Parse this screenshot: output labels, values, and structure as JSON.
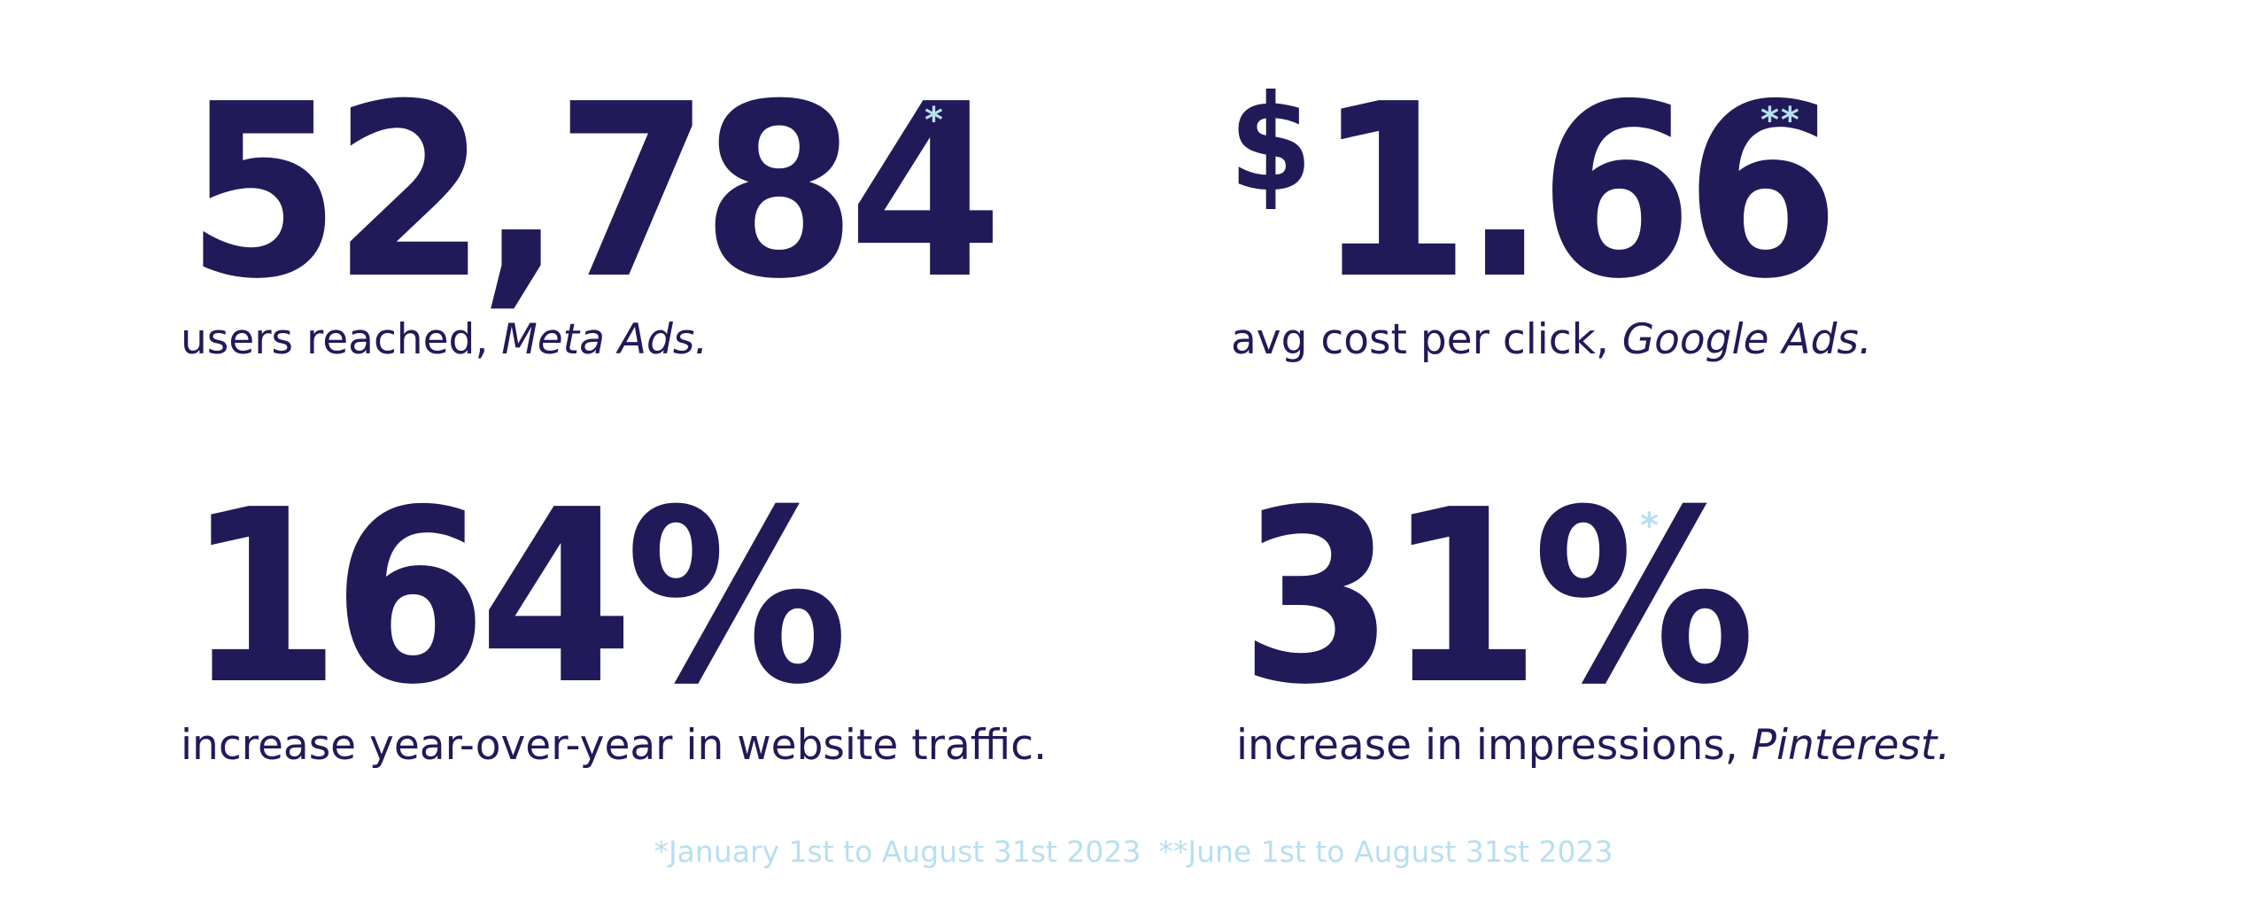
{
  "stats": [
    {
      "value": "52,784",
      "marker": "*",
      "caption_plain": "users reached, ",
      "caption_em": "Meta Ads."
    },
    {
      "prefix": "$",
      "value": "1.66",
      "marker": "**",
      "caption_plain": "avg cost per click, ",
      "caption_em": "Google Ads."
    },
    {
      "value": "164%",
      "caption_plain": "increase year-over-year in website traffic.",
      "caption_em": ""
    },
    {
      "value": "31%",
      "marker": "*",
      "caption_plain": "increase in impressions, ",
      "caption_em": "Pinterest."
    }
  ],
  "footnotes": {
    "first": "*January 1st to August 31st 2023",
    "second": "**June 1st to August 31st 2023"
  },
  "colors": {
    "primary": "#211a59",
    "accent": "#b8dff0",
    "background": "#ffffff"
  }
}
